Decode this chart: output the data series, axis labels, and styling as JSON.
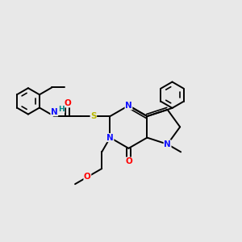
{
  "background_color": "#e8e8e8",
  "atom_colors": {
    "N": "#1010ff",
    "O": "#ff0000",
    "S": "#b8b800",
    "H": "#008888",
    "C": "#000000"
  },
  "bond_color": "#000000",
  "bond_width": 1.4
}
